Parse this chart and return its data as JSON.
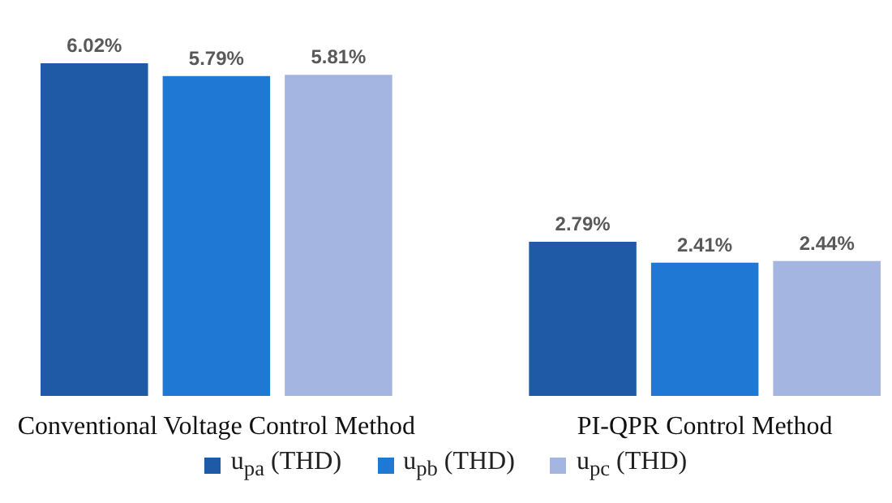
{
  "chart_data": {
    "type": "bar",
    "categories": [
      "Conventional Voltage Control Method",
      "PI-QPR Control Method"
    ],
    "series": [
      {
        "name": "u$_{pa}$ (THD)",
        "color": "#1f5aa6",
        "values": [
          6.02,
          2.79
        ],
        "value_labels": [
          "6.02%",
          "2.79%"
        ]
      },
      {
        "name": "u$_{pb}$ (THD)",
        "color": "#1f78d3",
        "values": [
          5.79,
          2.41
        ],
        "value_labels": [
          "5.79%",
          "2.41%"
        ]
      },
      {
        "name": "u$_{pc}$ (THD)",
        "color": "#a5b5e1",
        "values": [
          5.81,
          2.44
        ],
        "value_labels": [
          "5.81%",
          "2.44%"
        ]
      }
    ],
    "legend": "bottom",
    "tick_labels": "x"
  }
}
